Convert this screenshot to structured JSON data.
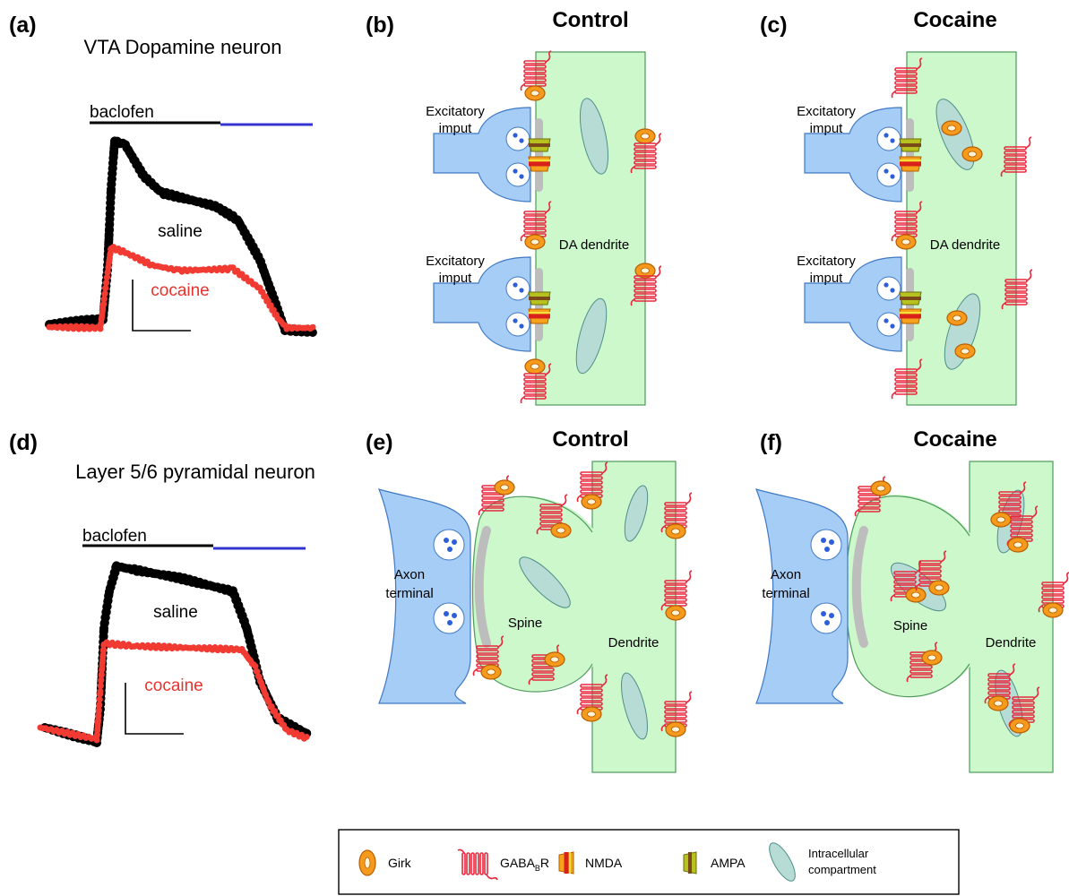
{
  "panels": [
    {
      "label": "(a)",
      "title": "VTA Dopamine neuron",
      "drug": "baclofen",
      "traces": [
        "saline",
        "cocaine"
      ]
    },
    {
      "label": "(b)",
      "title": "Control",
      "inputs": [
        [
          "Excitatory",
          "imput"
        ],
        [
          "Excitatory",
          "imput"
        ]
      ],
      "dendrite": "DA dendrite"
    },
    {
      "label": "(c)",
      "title": "Cocaine",
      "inputs": [
        [
          "Excitatory",
          "imput"
        ],
        [
          "Excitatory",
          "imput"
        ]
      ],
      "dendrite": "DA dendrite"
    },
    {
      "label": "(d)",
      "title": "Layer 5/6 pyramidal neuron",
      "drug": "baclofen",
      "traces": [
        "saline",
        "cocaine"
      ]
    },
    {
      "label": "(e)",
      "title": "Control",
      "terminal": [
        "Axon",
        "terminal"
      ],
      "spine": "Spine",
      "dendrite": "Dendrite"
    },
    {
      "label": "(f)",
      "title": "Cocaine",
      "terminal": [
        "Axon",
        "terminal"
      ],
      "spine": "Spine",
      "dendrite": "Dendrite"
    }
  ],
  "legend": {
    "girk": "Girk",
    "gabab": {
      "main": "GABA",
      "sub": "B",
      "suffix": "R"
    },
    "nmda": "NMDA",
    "ampa": "AMPA",
    "compartment": [
      "Intracellular",
      "compartment"
    ]
  }
}
